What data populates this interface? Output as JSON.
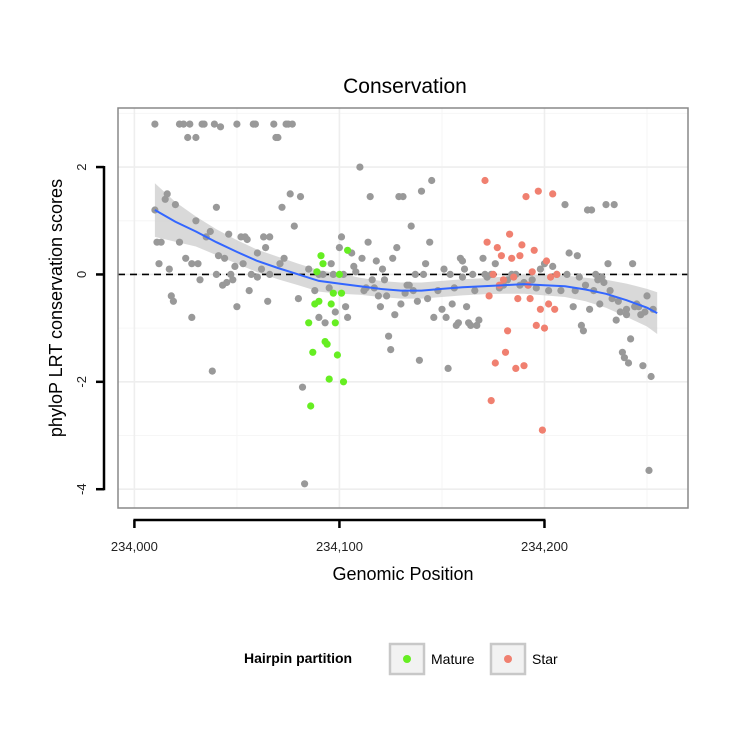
{
  "chart_data": {
    "type": "scatter",
    "title": "Conservation",
    "xlabel": "Genomic Position",
    "ylabel": "phyloP LRT conservation scores",
    "xlim": [
      233992,
      234270
    ],
    "ylim": [
      -4.35,
      3.1
    ],
    "x_ticks": [
      234000,
      234100,
      234200
    ],
    "x_tick_labels": [
      "234,000",
      "234,100",
      "234,200"
    ],
    "y_ticks": [
      -4,
      -2,
      0,
      2
    ],
    "y_tick_labels": [
      "-4",
      "-2",
      "0",
      "2"
    ],
    "grid": true,
    "reference_line": {
      "y": 0,
      "style": "dashed"
    },
    "legend": {
      "title": "Hairpin partition",
      "position": "bottom",
      "entries": [
        {
          "label": "Mature",
          "color": "#66ee22"
        },
        {
          "label": "Star",
          "color": "#f08070"
        }
      ]
    },
    "colors": {
      "other": "#999999",
      "Mature": "#66ee22",
      "Star": "#f08070",
      "smooth": "#3366ff",
      "band": "#cccccc"
    },
    "series": [
      {
        "group": "other",
        "points": [
          [
            234010,
            2.8
          ],
          [
            234010,
            1.2
          ],
          [
            234011,
            0.6
          ],
          [
            234013,
            0.6
          ],
          [
            234012,
            0.2
          ],
          [
            234015,
            1.4
          ],
          [
            234016,
            1.5
          ],
          [
            234017,
            0.1
          ],
          [
            234018,
            -0.4
          ],
          [
            234019,
            -0.5
          ],
          [
            234020,
            1.3
          ],
          [
            234022,
            2.8
          ],
          [
            234022,
            0.6
          ],
          [
            234024,
            2.8
          ],
          [
            234025,
            0.3
          ],
          [
            234026,
            2.55
          ],
          [
            234027,
            2.8
          ],
          [
            234028,
            0.2
          ],
          [
            234028,
            -0.8
          ],
          [
            234030,
            2.55
          ],
          [
            234030,
            1.0
          ],
          [
            234031,
            0.2
          ],
          [
            234032,
            -0.1
          ],
          [
            234033,
            2.8
          ],
          [
            234034,
            2.8
          ],
          [
            234035,
            0.7
          ],
          [
            234037,
            0.8
          ],
          [
            234038,
            -1.8
          ],
          [
            234039,
            2.8
          ],
          [
            234040,
            1.25
          ],
          [
            234040,
            0.0
          ],
          [
            234041,
            0.35
          ],
          [
            234042,
            2.75
          ],
          [
            234043,
            -0.2
          ],
          [
            234044,
            0.3
          ],
          [
            234045,
            -0.15
          ],
          [
            234046,
            0.75
          ],
          [
            234047,
            0.0
          ],
          [
            234048,
            -0.1
          ],
          [
            234049,
            0.15
          ],
          [
            234050,
            2.8
          ],
          [
            234050,
            -0.6
          ],
          [
            234052,
            0.7
          ],
          [
            234053,
            0.2
          ],
          [
            234054,
            0.7
          ],
          [
            234055,
            0.65
          ],
          [
            234056,
            -0.3
          ],
          [
            234057,
            0.0
          ],
          [
            234058,
            2.8
          ],
          [
            234059,
            2.8
          ],
          [
            234060,
            0.4
          ],
          [
            234060,
            -0.05
          ],
          [
            234062,
            0.1
          ],
          [
            234063,
            0.7
          ],
          [
            234064,
            0.5
          ],
          [
            234065,
            -0.5
          ],
          [
            234066,
            0.7
          ],
          [
            234066,
            0.0
          ],
          [
            234068,
            2.8
          ],
          [
            234069,
            2.55
          ],
          [
            234070,
            2.55
          ],
          [
            234071,
            0.2
          ],
          [
            234072,
            1.25
          ],
          [
            234073,
            0.3
          ],
          [
            234074,
            2.8
          ],
          [
            234075,
            2.8
          ],
          [
            234076,
            1.5
          ],
          [
            234077,
            2.8
          ],
          [
            234078,
            0.9
          ],
          [
            234080,
            -0.45
          ],
          [
            234081,
            1.45
          ],
          [
            234082,
            -2.1
          ],
          [
            234083,
            -3.9
          ],
          [
            234085,
            0.1
          ],
          [
            234088,
            -0.3
          ],
          [
            234090,
            -0.8
          ],
          [
            234090,
            0.0
          ],
          [
            234092,
            0.0
          ],
          [
            234093,
            -0.9
          ],
          [
            234095,
            -0.25
          ],
          [
            234096,
            0.2
          ],
          [
            234097,
            0.0
          ],
          [
            234098,
            -0.7
          ],
          [
            234100,
            0.5
          ],
          [
            234101,
            0.7
          ],
          [
            234102,
            0.0
          ],
          [
            234103,
            -0.6
          ],
          [
            234104,
            -0.8
          ],
          [
            234106,
            0.4
          ],
          [
            234107,
            0.15
          ],
          [
            234108,
            0.05
          ],
          [
            234110,
            2.0
          ],
          [
            234111,
            0.3
          ],
          [
            234112,
            -0.3
          ],
          [
            234113,
            -0.25
          ],
          [
            234114,
            0.6
          ],
          [
            234115,
            1.45
          ],
          [
            234116,
            -0.1
          ],
          [
            234117,
            -0.25
          ],
          [
            234118,
            0.25
          ],
          [
            234119,
            -0.4
          ],
          [
            234120,
            -0.6
          ],
          [
            234121,
            0.1
          ],
          [
            234122,
            -0.1
          ],
          [
            234123,
            -0.4
          ],
          [
            234124,
            -1.15
          ],
          [
            234125,
            -1.4
          ],
          [
            234126,
            0.3
          ],
          [
            234127,
            -0.75
          ],
          [
            234128,
            0.5
          ],
          [
            234129,
            1.45
          ],
          [
            234130,
            -0.55
          ],
          [
            234131,
            1.45
          ],
          [
            234132,
            -0.35
          ],
          [
            234133,
            -0.2
          ],
          [
            234134,
            -0.2
          ],
          [
            234135,
            0.9
          ],
          [
            234136,
            -0.3
          ],
          [
            234137,
            0.0
          ],
          [
            234138,
            -0.5
          ],
          [
            234139,
            -1.6
          ],
          [
            234140,
            1.55
          ],
          [
            234141,
            0.0
          ],
          [
            234142,
            0.2
          ],
          [
            234143,
            -0.45
          ],
          [
            234144,
            0.6
          ],
          [
            234145,
            1.75
          ],
          [
            234146,
            -0.8
          ],
          [
            234148,
            -0.3
          ],
          [
            234150,
            -0.65
          ],
          [
            234151,
            0.1
          ],
          [
            234152,
            -0.8
          ],
          [
            234153,
            -1.75
          ],
          [
            234154,
            0.0
          ],
          [
            234155,
            -0.55
          ],
          [
            234156,
            -0.25
          ],
          [
            234157,
            -0.95
          ],
          [
            234158,
            -0.9
          ],
          [
            234159,
            0.3
          ],
          [
            234160,
            0.25
          ],
          [
            234160,
            -0.05
          ],
          [
            234161,
            0.1
          ],
          [
            234162,
            -0.6
          ],
          [
            234163,
            -0.9
          ],
          [
            234164,
            -0.95
          ],
          [
            234165,
            0.0
          ],
          [
            234166,
            -0.3
          ],
          [
            234167,
            -0.95
          ],
          [
            234168,
            -0.85
          ],
          [
            234170,
            0.3
          ],
          [
            234171,
            0.0
          ],
          [
            234172,
            -0.05
          ],
          [
            234174,
            0.0
          ],
          [
            234176,
            0.2
          ],
          [
            234178,
            -0.25
          ],
          [
            234180,
            -0.2
          ],
          [
            234182,
            -0.1
          ],
          [
            234184,
            0.0
          ],
          [
            234186,
            0.0
          ],
          [
            234188,
            -0.2
          ],
          [
            234190,
            -0.15
          ],
          [
            234192,
            -0.2
          ],
          [
            234194,
            -0.1
          ],
          [
            234196,
            -0.25
          ],
          [
            234198,
            0.1
          ],
          [
            234200,
            0.2
          ],
          [
            234202,
            -0.3
          ],
          [
            234204,
            0.15
          ],
          [
            234206,
            0.0
          ],
          [
            234208,
            -0.3
          ],
          [
            234210,
            1.3
          ],
          [
            234211,
            0.0
          ],
          [
            234212,
            0.4
          ],
          [
            234214,
            -0.6
          ],
          [
            234215,
            -0.3
          ],
          [
            234216,
            0.35
          ],
          [
            234217,
            -0.05
          ],
          [
            234218,
            -0.95
          ],
          [
            234219,
            -1.05
          ],
          [
            234220,
            -0.2
          ],
          [
            234221,
            1.2
          ],
          [
            234222,
            -0.65
          ],
          [
            234223,
            1.2
          ],
          [
            234224,
            -0.3
          ],
          [
            234225,
            0.0
          ],
          [
            234226,
            -0.1
          ],
          [
            234227,
            -0.55
          ],
          [
            234228,
            -0.05
          ],
          [
            234229,
            -0.15
          ],
          [
            234230,
            1.3
          ],
          [
            234231,
            0.2
          ],
          [
            234232,
            -0.3
          ],
          [
            234233,
            -0.45
          ],
          [
            234234,
            1.3
          ],
          [
            234235,
            -0.85
          ],
          [
            234236,
            -0.5
          ],
          [
            234237,
            -0.7
          ],
          [
            234238,
            -1.45
          ],
          [
            234239,
            -1.55
          ],
          [
            234240,
            -0.65
          ],
          [
            234240,
            -0.75
          ],
          [
            234241,
            -1.65
          ],
          [
            234242,
            -1.2
          ],
          [
            234243,
            0.2
          ],
          [
            234244,
            -0.6
          ],
          [
            234245,
            -0.55
          ],
          [
            234246,
            -0.6
          ],
          [
            234247,
            -0.75
          ],
          [
            234248,
            -1.7
          ],
          [
            234249,
            -0.7
          ],
          [
            234250,
            -0.4
          ],
          [
            234251,
            -3.65
          ],
          [
            234252,
            -1.9
          ],
          [
            234253,
            -0.65
          ]
        ]
      },
      {
        "group": "Mature",
        "name": "Mature",
        "points": [
          [
            234085,
            -0.9
          ],
          [
            234086,
            -2.45
          ],
          [
            234087,
            -1.45
          ],
          [
            234088,
            -0.55
          ],
          [
            234089,
            0.05
          ],
          [
            234090,
            -0.5
          ],
          [
            234091,
            0.35
          ],
          [
            234092,
            0.2
          ],
          [
            234093,
            -1.25
          ],
          [
            234094,
            -1.3
          ],
          [
            234095,
            -1.95
          ],
          [
            234096,
            -0.55
          ],
          [
            234097,
            -0.35
          ],
          [
            234098,
            -0.9
          ],
          [
            234099,
            -1.5
          ],
          [
            234100,
            0.0
          ],
          [
            234101,
            -0.35
          ],
          [
            234102,
            -2.0
          ],
          [
            234104,
            0.45
          ]
        ]
      },
      {
        "group": "Star",
        "name": "Star",
        "points": [
          [
            234171,
            1.75
          ],
          [
            234172,
            0.6
          ],
          [
            234173,
            -0.4
          ],
          [
            234174,
            -2.35
          ],
          [
            234175,
            0.0
          ],
          [
            234176,
            -1.65
          ],
          [
            234177,
            0.5
          ],
          [
            234178,
            -0.2
          ],
          [
            234179,
            0.35
          ],
          [
            234180,
            -0.1
          ],
          [
            234181,
            -1.45
          ],
          [
            234182,
            -1.05
          ],
          [
            234183,
            0.75
          ],
          [
            234184,
            0.3
          ],
          [
            234185,
            -0.05
          ],
          [
            234186,
            -1.75
          ],
          [
            234187,
            -0.45
          ],
          [
            234188,
            0.35
          ],
          [
            234189,
            0.55
          ],
          [
            234190,
            -1.7
          ],
          [
            234191,
            1.45
          ],
          [
            234192,
            -0.2
          ],
          [
            234193,
            -0.45
          ],
          [
            234194,
            0.05
          ],
          [
            234195,
            0.45
          ],
          [
            234196,
            -0.95
          ],
          [
            234197,
            1.55
          ],
          [
            234198,
            -0.65
          ],
          [
            234199,
            -2.9
          ],
          [
            234200,
            -1.0
          ],
          [
            234201,
            0.25
          ],
          [
            234202,
            -0.55
          ],
          [
            234203,
            -0.05
          ],
          [
            234204,
            1.5
          ],
          [
            234205,
            -0.65
          ],
          [
            234206,
            0.0
          ]
        ]
      }
    ],
    "smooth": {
      "x": [
        234010,
        234020,
        234030,
        234040,
        234050,
        234060,
        234070,
        234080,
        234090,
        234100,
        234110,
        234120,
        234130,
        234140,
        234150,
        234160,
        234170,
        234180,
        234190,
        234200,
        234210,
        234220,
        234230,
        234240,
        234250,
        234255
      ],
      "y": [
        1.2,
        0.98,
        0.8,
        0.6,
        0.42,
        0.25,
        0.12,
        0.0,
        -0.12,
        -0.17,
        -0.22,
        -0.27,
        -0.3,
        -0.3,
        -0.27,
        -0.24,
        -0.22,
        -0.2,
        -0.18,
        -0.2,
        -0.22,
        -0.28,
        -0.36,
        -0.48,
        -0.62,
        -0.72
      ],
      "upper": [
        1.7,
        1.35,
        1.08,
        0.84,
        0.64,
        0.46,
        0.33,
        0.2,
        0.08,
        0.02,
        -0.06,
        -0.12,
        -0.15,
        -0.15,
        -0.12,
        -0.09,
        -0.07,
        -0.04,
        0.0,
        -0.01,
        -0.02,
        -0.06,
        -0.1,
        -0.17,
        -0.27,
        -0.33
      ],
      "lower": [
        0.7,
        0.61,
        0.52,
        0.36,
        0.2,
        0.04,
        -0.09,
        -0.2,
        -0.32,
        -0.36,
        -0.38,
        -0.42,
        -0.45,
        -0.45,
        -0.42,
        -0.39,
        -0.37,
        -0.36,
        -0.36,
        -0.39,
        -0.42,
        -0.5,
        -0.62,
        -0.79,
        -0.97,
        -1.11
      ]
    }
  }
}
